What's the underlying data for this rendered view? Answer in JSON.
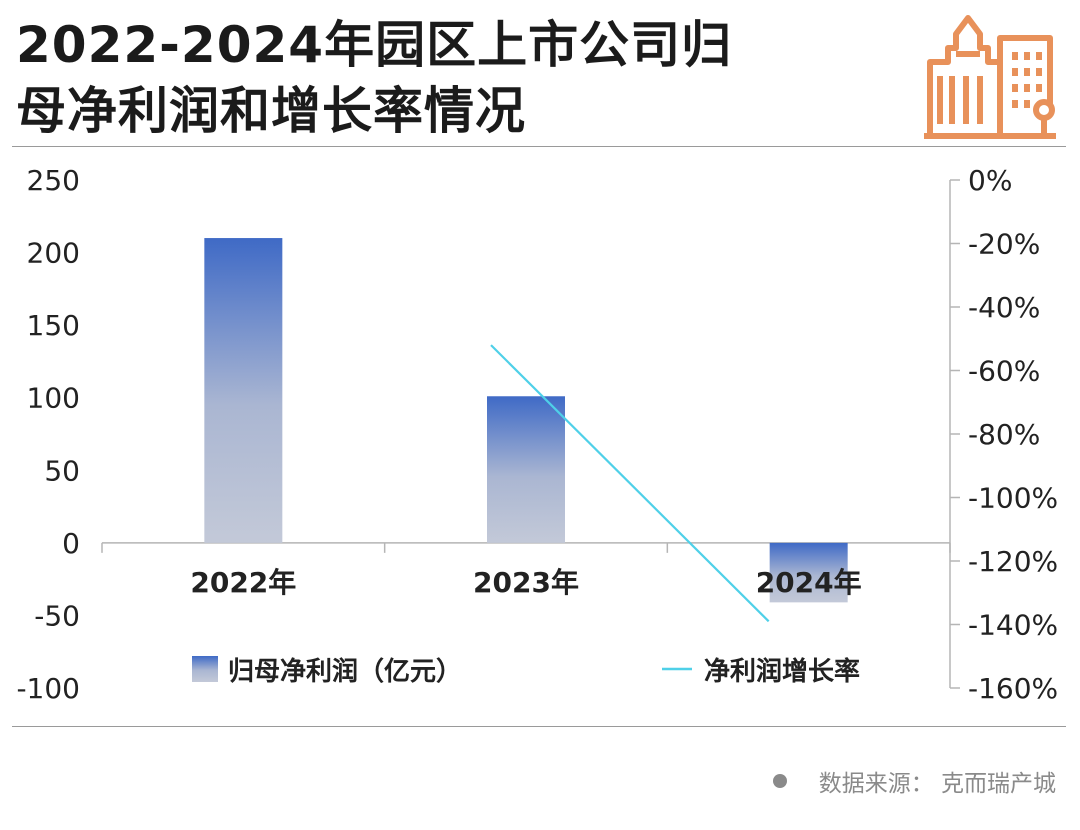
{
  "header": {
    "title_line1": "2022-2024年园区上市公司归",
    "title_line2": "母净利润和增长率情况"
  },
  "source": {
    "text": "数据来源：   克而瑞产城"
  },
  "colors": {
    "bar_top": "#3f6ac6",
    "bar_bottom": "#c3c9d8",
    "line": "#4fd0e8",
    "logo": "#e8915a"
  },
  "chart_data": {
    "type": "bar",
    "categories": [
      "2022年",
      "2023年",
      "2024年"
    ],
    "series": [
      {
        "name": "归母净利润（亿元）",
        "type": "bar",
        "axis": "left",
        "values": [
          210,
          101,
          -41
        ]
      },
      {
        "name": "净利润增长率",
        "type": "line",
        "axis": "right",
        "points": [
          [
            1,
            -52
          ],
          [
            2,
            -139
          ]
        ]
      }
    ],
    "left_axis": {
      "ylim": [
        -100,
        250
      ],
      "ticks": [
        250,
        200,
        150,
        100,
        50,
        0,
        -50,
        -100
      ]
    },
    "right_axis": {
      "ylim": [
        -160,
        0
      ],
      "tick_labels": [
        "0%",
        "-20%",
        "-40%",
        "-60%",
        "-80%",
        "-100%",
        "-120%",
        "-140%",
        "-160%"
      ],
      "ticks": [
        0,
        -20,
        -40,
        -60,
        -80,
        -100,
        -120,
        -140,
        -160
      ]
    },
    "legend": [
      "归母净利润（亿元）",
      "净利润增长率"
    ],
    "grid": false,
    "legend_position": "bottom"
  }
}
